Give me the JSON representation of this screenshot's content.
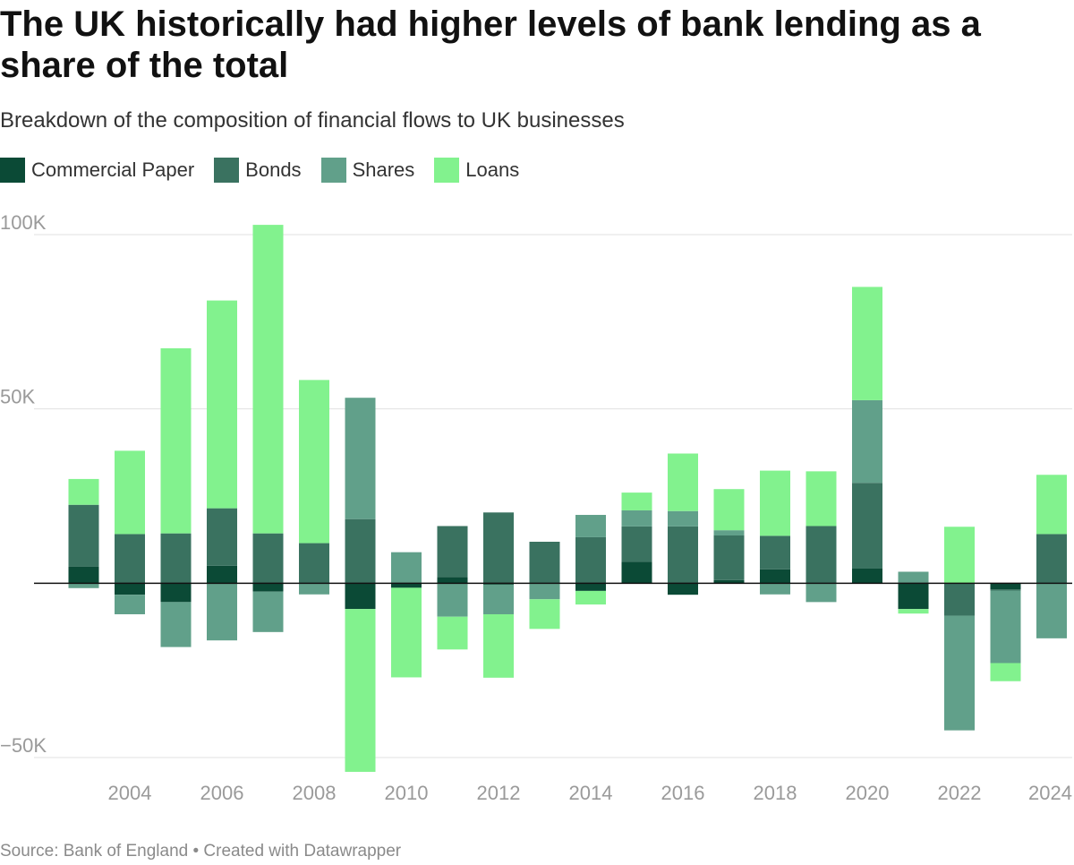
{
  "header": {
    "title": "The UK historically had higher levels of bank lending as a share of the total",
    "subtitle": "Breakdown of the composition of financial flows to UK businesses"
  },
  "footer": {
    "source": "Source: Bank of England",
    "separator": " • ",
    "credit": "Created with Datawrapper"
  },
  "chart_data": {
    "type": "bar",
    "stacked": true,
    "title": "The UK historically had higher levels of bank lending as a share of the total",
    "subtitle": "Breakdown of the composition of financial flows to UK businesses",
    "xlabel": "",
    "ylabel": "",
    "ylim": [
      -53000,
      103000
    ],
    "y_ticks": [
      {
        "value": 100000,
        "label": "100K"
      },
      {
        "value": 50000,
        "label": "50K"
      },
      {
        "value": -50000,
        "label": "−50K"
      }
    ],
    "x_ticks": [
      "2004",
      "2006",
      "2008",
      "2010",
      "2012",
      "2014",
      "2016",
      "2018",
      "2020",
      "2022",
      "2024"
    ],
    "categories": [
      "2003",
      "2004",
      "2005",
      "2006",
      "2007",
      "2008",
      "2009",
      "2010",
      "2011",
      "2012",
      "2013",
      "2014",
      "2015",
      "2016",
      "2017",
      "2018",
      "2019",
      "2020",
      "2021",
      "2022",
      "2023",
      "2024"
    ],
    "legend_position": "top-left",
    "series": [
      {
        "name": "Commercial Paper",
        "color": "#0b4a36",
        "values": [
          4800,
          -3300,
          -5400,
          5000,
          -2400,
          0,
          -7400,
          -1300,
          1800,
          -400,
          0,
          -2200,
          6200,
          -3300,
          900,
          4000,
          0,
          4200,
          -7400,
          0,
          -1800,
          0
        ]
      },
      {
        "name": "Bonds",
        "color": "#3a7260",
        "values": [
          17700,
          14100,
          14300,
          16500,
          14300,
          11500,
          18400,
          0,
          14600,
          20300,
          11900,
          13200,
          10100,
          16300,
          12800,
          9600,
          16400,
          24600,
          0,
          -9300,
          -300,
          14100
        ]
      },
      {
        "name": "Shares",
        "color": "#61a08a",
        "values": [
          -1400,
          -5600,
          -12900,
          -16400,
          -11600,
          -3200,
          34800,
          8900,
          -9600,
          -8500,
          -4600,
          6400,
          4600,
          4400,
          1500,
          -3200,
          -5400,
          23700,
          3300,
          -32900,
          -20800,
          -15800
        ]
      },
      {
        "name": "Loans",
        "color": "#82f28e",
        "values": [
          7400,
          23900,
          53100,
          59600,
          88500,
          46800,
          -46700,
          -25700,
          -9400,
          -18200,
          -8500,
          -3900,
          5100,
          16500,
          11800,
          18700,
          15700,
          32500,
          -1300,
          16200,
          -5200,
          17000
        ]
      }
    ]
  }
}
